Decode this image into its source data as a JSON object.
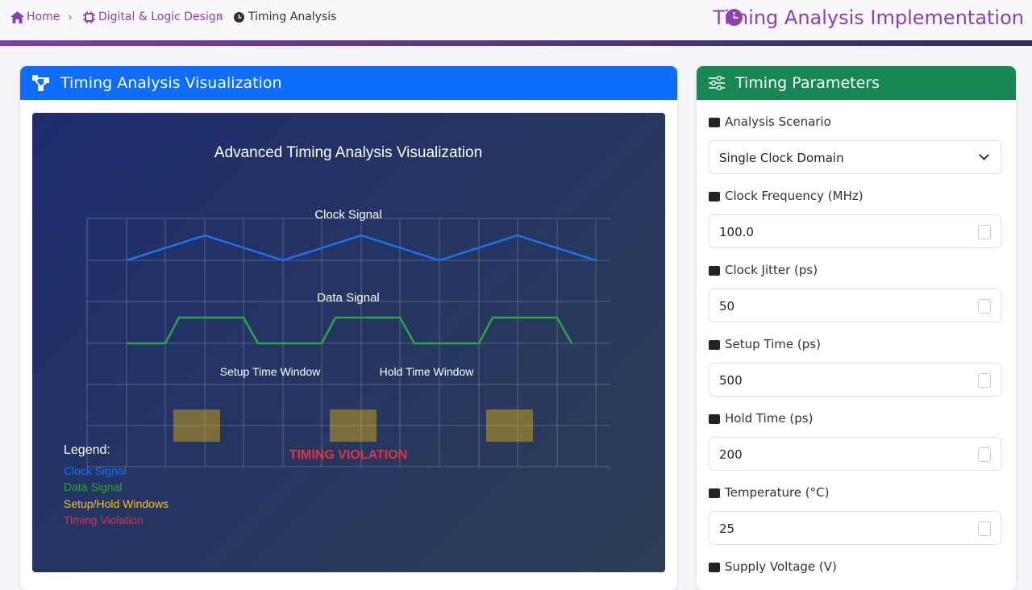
{
  "breadcrumb": {
    "items": [
      "Home",
      "Digital & Logic Design",
      "Timing Analysis"
    ]
  },
  "header": {
    "title": "Timing Analysis Implementation"
  },
  "visualization": {
    "title": "Timing Analysis Visualization",
    "canvas": {
      "title": "Advanced Timing Analysis Visualization",
      "clock_label": "Clock Signal",
      "data_label": "Data Signal",
      "setup_label": "Setup Time Window",
      "hold_label": "Hold Time Window",
      "violation": "TIMING VIOLATION",
      "legend": {
        "title": "Legend:",
        "items": [
          "Clock Signal",
          "Data Signal",
          "Setup/Hold Windows",
          "Timing Violation"
        ]
      }
    }
  },
  "parameters": {
    "title": "Timing Parameters",
    "fields": [
      {
        "label": "Analysis Scenario",
        "value": "Single Clock Domain"
      },
      {
        "label": "Clock Frequency (MHz)",
        "value": "100.0"
      },
      {
        "label": "Clock Jitter (ps)",
        "value": "50"
      },
      {
        "label": "Setup Time (ps)",
        "value": "500"
      },
      {
        "label": "Hold Time (ps)",
        "value": "200"
      },
      {
        "label": "Temperature (°C)",
        "value": "25"
      },
      {
        "label": "Supply Voltage (V)"
      }
    ]
  }
}
